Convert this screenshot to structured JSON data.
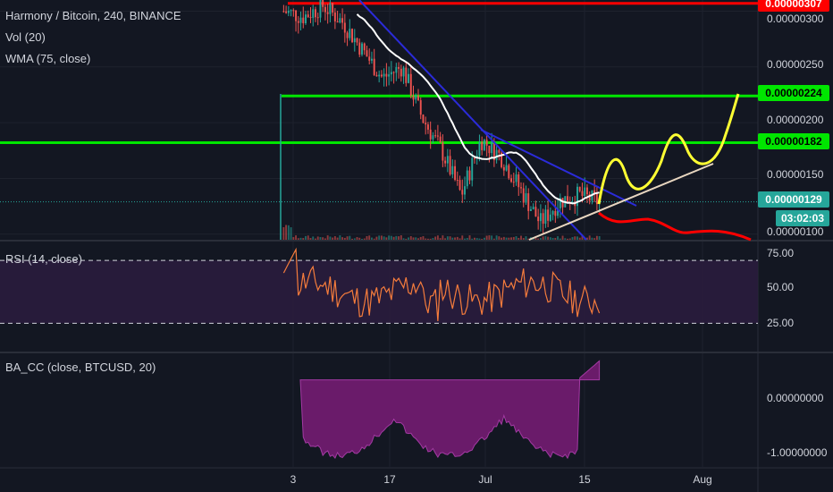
{
  "colors": {
    "background": "#131722",
    "grid": "#1e222d",
    "up": "#26a69a",
    "down": "#ef5350",
    "wma": "#ffffff",
    "trend_blue": "#2b2bd9",
    "support_line": "#e8d6c0",
    "level_red": "#ff0000",
    "level_green": "#00e600",
    "projection_yellow": "#ffff33",
    "projection_red": "#ff0000",
    "rsi_line": "#f57c3c",
    "rsi_band": "#2a1c3d",
    "ba_fill": "#6a1b6a",
    "current_price": "#26a69a"
  },
  "legend": {
    "title": "Harmony / Bitcoin, 240, BINANCE",
    "volume": "Vol (20)",
    "wma": "WMA (75, close)",
    "rsi": "RSI (14, close)",
    "ba": "BA_CC (close, BTCUSD, 20)"
  },
  "price_tags": {
    "red_level": "0.00000307",
    "green_high": "0.00000224",
    "green_low": "0.00000182",
    "current": "0.00000129",
    "countdown": "03:02:03"
  },
  "chart_data": [
    {
      "type": "candlestick",
      "title": "Harmony / Bitcoin, 240, BINANCE",
      "price_axis_ticks": [
        "0.00000300",
        "0.00000250",
        "0.00000200",
        "0.00000150",
        "0.00000100"
      ],
      "ylim": [
        9.5e-07,
        3.1e-06
      ],
      "time_labels": [
        "3",
        "17",
        "Jul",
        "15",
        "Aug"
      ],
      "horizontal_levels": [
        {
          "value": 3.07e-06,
          "color": "red"
        },
        {
          "value": 2.24e-06,
          "color": "green"
        },
        {
          "value": 1.82e-06,
          "color": "green"
        }
      ],
      "approx_close_path": [
        {
          "t": "Jun 1",
          "price": 3e-06
        },
        {
          "t": "Jun 3",
          "price": 2.95e-06
        },
        {
          "t": "Jun 6",
          "price": 3.05e-06
        },
        {
          "t": "Jun 10",
          "price": 2.9e-06
        },
        {
          "t": "Jun 14",
          "price": 2.65e-06
        },
        {
          "t": "Jun 17",
          "price": 2.4e-06
        },
        {
          "t": "Jun 20",
          "price": 2.5e-06
        },
        {
          "t": "Jun 24",
          "price": 2.05e-06
        },
        {
          "t": "Jun 27",
          "price": 1.75e-06
        },
        {
          "t": "Jun 28",
          "price": 1.35e-06
        },
        {
          "t": "Jul 1",
          "price": 1.85e-06
        },
        {
          "t": "Jul 4",
          "price": 1.7e-06
        },
        {
          "t": "Jul 7",
          "price": 1.4e-06
        },
        {
          "t": "Jul 10",
          "price": 1.1e-06
        },
        {
          "t": "Jul 12",
          "price": 1.3e-06
        },
        {
          "t": "Jul 15",
          "price": 1.35e-06
        },
        {
          "t": "Jul 17",
          "price": 1.29e-06
        }
      ],
      "rsi": {
        "label": "RSI (14, close)",
        "ticks": [
          "75.00",
          "50.00",
          "25.00"
        ],
        "band": [
          30,
          70
        ],
        "ylim": [
          12,
          82
        ]
      },
      "ba_cc": {
        "label": "BA_CC (close, BTCUSD, 20)",
        "ticks": [
          "0.00000000",
          "-1.00000000"
        ],
        "ylim": [
          -1.15,
          0.35
        ]
      }
    }
  ]
}
